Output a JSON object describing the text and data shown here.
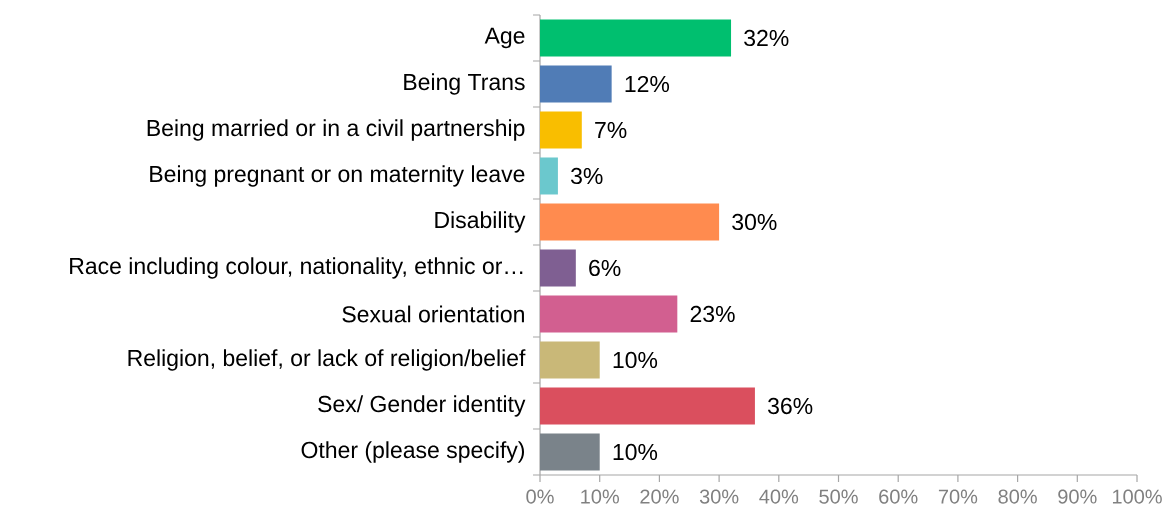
{
  "chart_data": {
    "type": "bar",
    "orientation": "horizontal",
    "categories": [
      "Age",
      "Being Trans",
      "Being married or in a civil partnership",
      "Being pregnant or on maternity leave",
      "Disability",
      "Race including colour, nationality, ethnic or…",
      "Sexual orientation",
      "Religion, belief, or lack of religion/belief",
      "Sex/ Gender identity",
      "Other (please specify)"
    ],
    "values": [
      32,
      12,
      7,
      3,
      30,
      6,
      23,
      10,
      36,
      10
    ],
    "value_labels": [
      "32%",
      "12%",
      "7%",
      "3%",
      "30%",
      "6%",
      "23%",
      "10%",
      "36%",
      "10%"
    ],
    "colors": [
      "#00bf6f",
      "#507cb6",
      "#f9be00",
      "#6bc8cd",
      "#ff8b4f",
      "#7f5f92",
      "#d25f90",
      "#c9b878",
      "#da4f5e",
      "#7a838a"
    ],
    "xlim": [
      0,
      100
    ],
    "xticks": [
      {
        "value": 0,
        "label": "0%"
      },
      {
        "value": 10,
        "label": "10%"
      },
      {
        "value": 20,
        "label": "20%"
      },
      {
        "value": 30,
        "label": "30%"
      },
      {
        "value": 40,
        "label": "40%"
      },
      {
        "value": 50,
        "label": "50%"
      },
      {
        "value": 60,
        "label": "60%"
      },
      {
        "value": 70,
        "label": "70%"
      },
      {
        "value": 80,
        "label": "80%"
      },
      {
        "value": 90,
        "label": "90%"
      },
      {
        "value": 100,
        "label": "100%"
      }
    ]
  }
}
